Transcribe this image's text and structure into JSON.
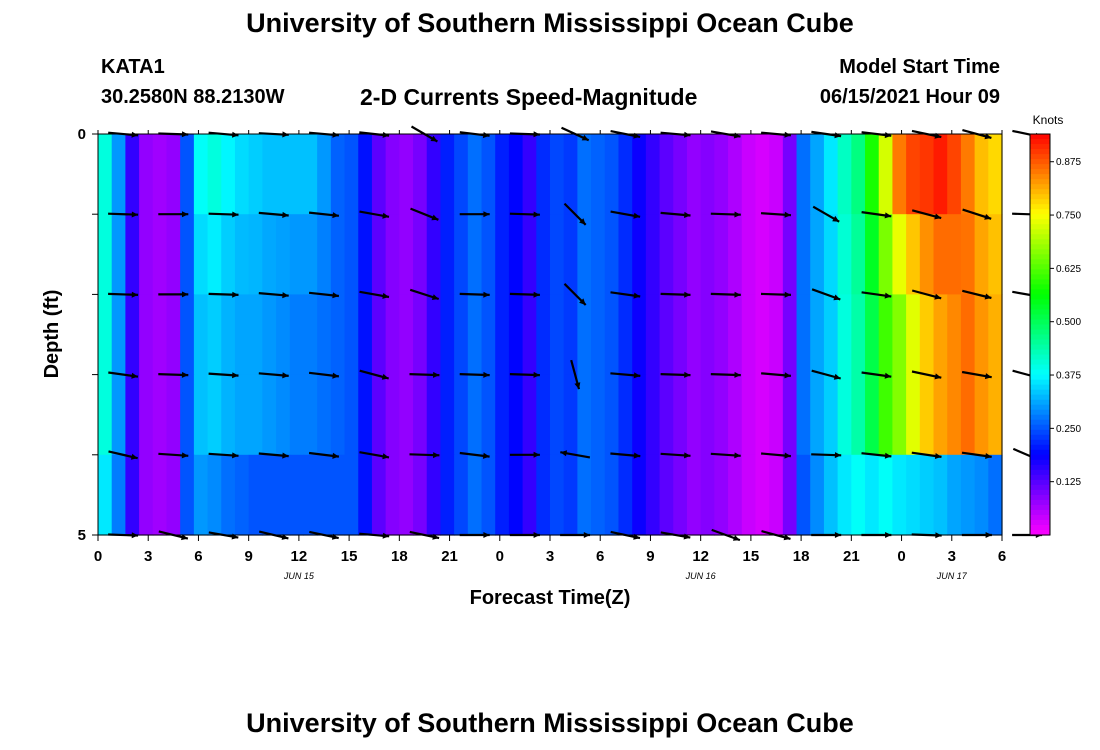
{
  "header": {
    "title": "University of Southern Mississippi Ocean Cube",
    "station": "KATA1",
    "coords": "30.2580N  88.2130W",
    "subtitle": "2-D Currents Speed-Magnitude",
    "model_label": "Model Start Time",
    "model_time": "06/15/2021 Hour 09"
  },
  "footer": {
    "title": "University of Southern Mississippi Ocean Cube"
  },
  "chart_data": {
    "type": "heatmap",
    "xlabel": "Forecast Time(Z)",
    "ylabel": "Depth (ft)",
    "colorbar_label": "Knots",
    "colorbar_ticks": [
      "0.125",
      "0.250",
      "0.375",
      "0.500",
      "0.625",
      "0.750",
      "0.875"
    ],
    "colorbar_range": [
      0,
      0.94
    ],
    "x_tick_labels": [
      "0",
      "3",
      "6",
      "9",
      "12",
      "15",
      "18",
      "21",
      "0",
      "3",
      "6",
      "9",
      "12",
      "15",
      "18",
      "21",
      "0",
      "3",
      "6"
    ],
    "date_labels": [
      {
        "text": "JUN 15",
        "after_tick": 12
      },
      {
        "text": "JUN 16",
        "after_tick": 36
      },
      {
        "text": "JUN 17",
        "after_tick": 51
      }
    ],
    "x_range_hours": [
      0,
      54
    ],
    "y_tick_labels": [
      "0",
      "5"
    ],
    "ylim": [
      0,
      5
    ],
    "depth_levels_ft": [
      0,
      1,
      2,
      3,
      4,
      5
    ],
    "speed_profile_knots": [
      0.4,
      0.3,
      0.15,
      0.08,
      0.07,
      0.08,
      0.25,
      0.33,
      0.34,
      0.32,
      0.31,
      0.31,
      0.3,
      0.29,
      0.28,
      0.28,
      0.27,
      0.26,
      0.25,
      0.2,
      0.12,
      0.09,
      0.08,
      0.1,
      0.15,
      0.21,
      0.24,
      0.27,
      0.25,
      0.21,
      0.19,
      0.15,
      0.22,
      0.24,
      0.23,
      0.27,
      0.26,
      0.25,
      0.22,
      0.18,
      0.15,
      0.12,
      0.1,
      0.08,
      0.09,
      0.08,
      0.06,
      0.04,
      0.03,
      0.04,
      0.1,
      0.27,
      0.31,
      0.34,
      0.4,
      0.44,
      0.51,
      0.61,
      0.66,
      0.73,
      0.79,
      0.82,
      0.84,
      0.86,
      0.83,
      0.81
    ],
    "surface_layer_row0": [
      0.4,
      0.3,
      0.15,
      0.08,
      0.07,
      0.08,
      0.25,
      0.38,
      0.4,
      0.37,
      0.35,
      0.34,
      0.33,
      0.33,
      0.33,
      0.33,
      0.3,
      0.26,
      0.25,
      0.2,
      0.12,
      0.09,
      0.08,
      0.1,
      0.15,
      0.21,
      0.24,
      0.27,
      0.25,
      0.21,
      0.19,
      0.15,
      0.22,
      0.24,
      0.23,
      0.27,
      0.26,
      0.25,
      0.22,
      0.18,
      0.15,
      0.12,
      0.1,
      0.08,
      0.09,
      0.08,
      0.06,
      0.04,
      0.03,
      0.04,
      0.1,
      0.27,
      0.31,
      0.36,
      0.42,
      0.47,
      0.58,
      0.72,
      0.85,
      0.89,
      0.9,
      0.92,
      0.89,
      0.85,
      0.8,
      0.78
    ],
    "bottom_layer_row4": [
      0.36,
      0.28,
      0.15,
      0.08,
      0.07,
      0.08,
      0.25,
      0.3,
      0.29,
      0.27,
      0.26,
      0.25,
      0.25,
      0.25,
      0.25,
      0.25,
      0.25,
      0.25,
      0.25,
      0.2,
      0.12,
      0.09,
      0.08,
      0.1,
      0.15,
      0.21,
      0.24,
      0.27,
      0.25,
      0.21,
      0.19,
      0.15,
      0.22,
      0.24,
      0.23,
      0.27,
      0.26,
      0.25,
      0.22,
      0.18,
      0.15,
      0.12,
      0.1,
      0.08,
      0.09,
      0.08,
      0.06,
      0.04,
      0.03,
      0.04,
      0.1,
      0.25,
      0.29,
      0.33,
      0.36,
      0.38,
      0.36,
      0.38,
      0.36,
      0.35,
      0.34,
      0.33,
      0.31,
      0.3,
      0.29,
      0.27
    ],
    "arrow_rows_ft": [
      0,
      1,
      2,
      3,
      4,
      5
    ],
    "arrow_times_hours": [
      0,
      3,
      6,
      9,
      12,
      15,
      18,
      21,
      24,
      27,
      30,
      33,
      36,
      39,
      42,
      45,
      48,
      51,
      54
    ],
    "arrow_angles_deg": [
      [
        175,
        178,
        175,
        177,
        175,
        174,
        150,
        173,
        178,
        155,
        169,
        175,
        170,
        175,
        172,
        173,
        168,
        165,
        168
      ],
      [
        178,
        180,
        178,
        175,
        174,
        170,
        158,
        180,
        178,
        135,
        170,
        175,
        178,
        176,
        150,
        172,
        165,
        162,
        178
      ],
      [
        178,
        180,
        178,
        175,
        174,
        170,
        162,
        178,
        178,
        135,
        172,
        178,
        178,
        178,
        160,
        172,
        165,
        166,
        170
      ],
      [
        172,
        178,
        176,
        175,
        173,
        165,
        178,
        178,
        178,
        105,
        175,
        178,
        178,
        175,
        165,
        172,
        168,
        170,
        165
      ],
      [
        167,
        176,
        176,
        175,
        173,
        170,
        178,
        173,
        180,
        350,
        175,
        176,
        176,
        175,
        178,
        174,
        172,
        172,
        157
      ],
      [
        178,
        166,
        170,
        167,
        168,
        175,
        168,
        180,
        180,
        180,
        168,
        170,
        160,
        165,
        180,
        180,
        178,
        180,
        180
      ]
    ]
  }
}
